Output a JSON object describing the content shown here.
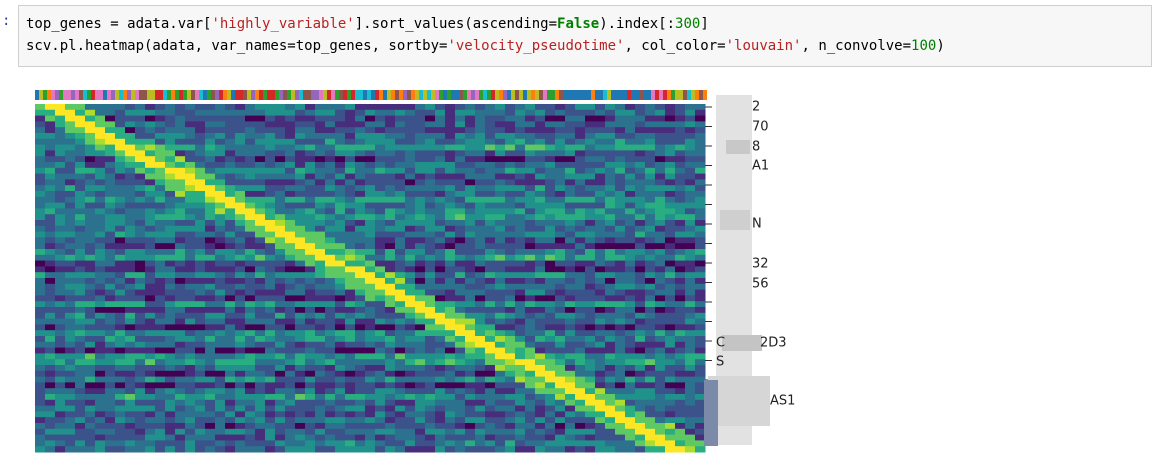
{
  "prompt": ":",
  "code": {
    "lines": [
      [
        "top_genes = adata.var[",
        "'highly_variable'",
        "].sort_values(ascending=",
        "False",
        ").index[:",
        "300",
        "]"
      ],
      [
        "scv.pl.heatmap(adata, var_names=top_genes, sortby=",
        "'velocity_pseudotime'",
        ", col_color=",
        "'louvain'",
        ", n_convolve=",
        "100",
        ")"
      ]
    ]
  },
  "gene_labels": [
    "2",
    "70",
    "8",
    "A1",
    "N",
    "32",
    "56",
    "C",
    "2D3",
    "S",
    "AS1"
  ]
}
